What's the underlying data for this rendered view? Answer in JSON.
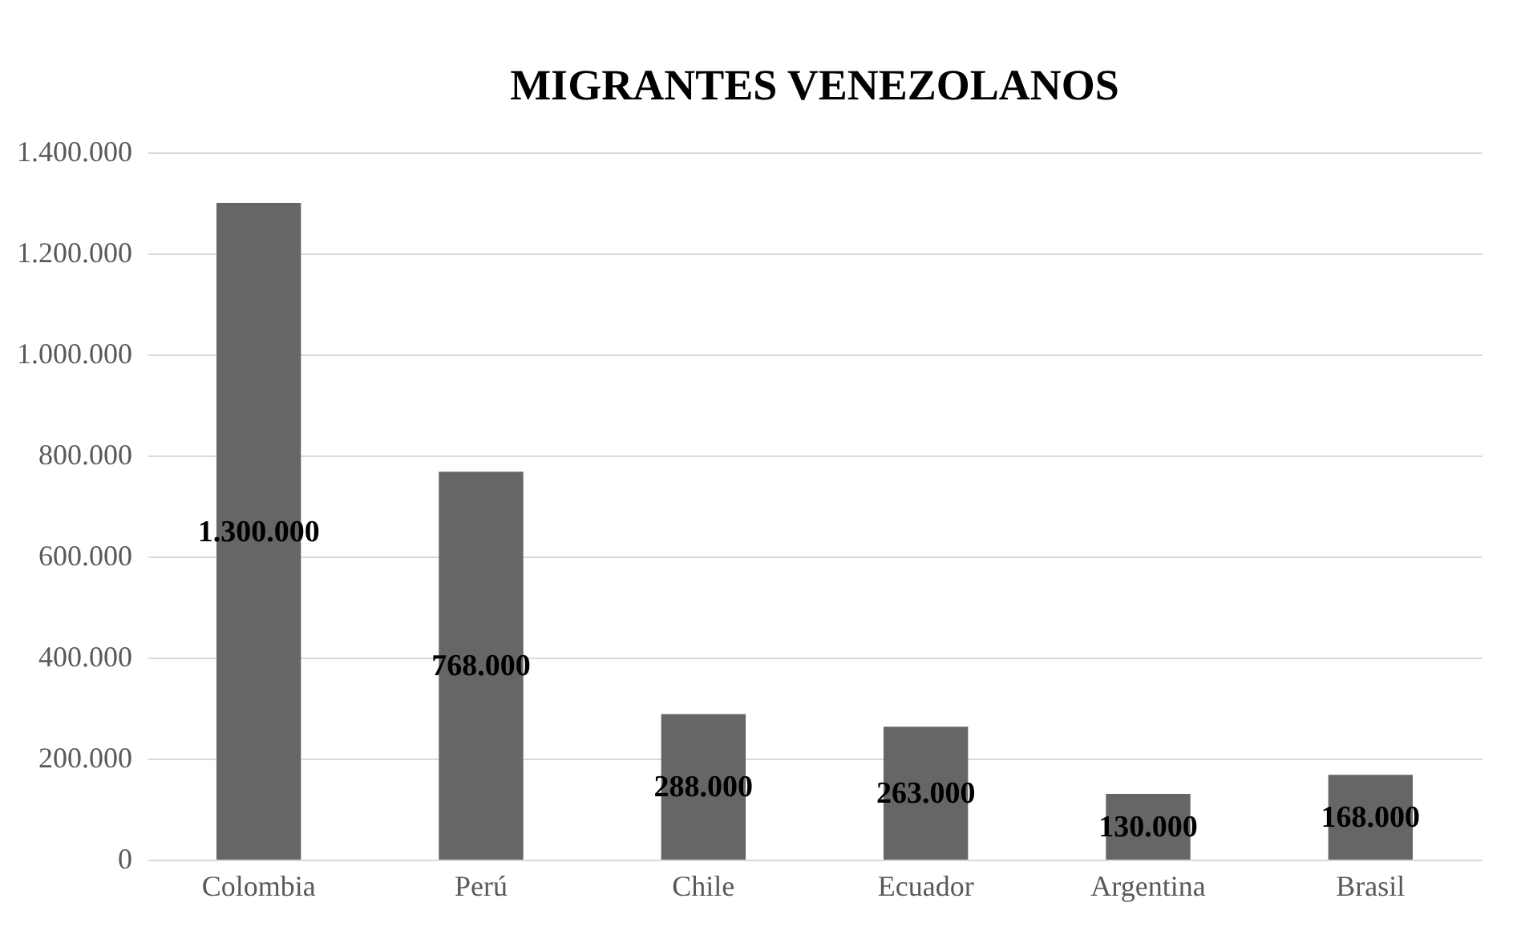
{
  "chart_data": {
    "type": "bar",
    "title": "MIGRANTES VENEZOLANOS",
    "categories": [
      "Colombia",
      "Perú",
      "Chile",
      "Ecuador",
      "Argentina",
      "Brasil"
    ],
    "values": [
      1300000,
      768000,
      288000,
      263000,
      130000,
      168000
    ],
    "value_labels": [
      "1.300.000",
      "768.000",
      "288.000",
      "263.000",
      "130.000",
      "168.000"
    ],
    "color": "#666666",
    "ylim": [
      0,
      1400000
    ],
    "yticks": [
      0,
      {
        "value": 200000,
        "label": "200.000"
      },
      {
        "value": 400000,
        "label": "400.000"
      },
      {
        "value": 600000,
        "label": "600.000"
      },
      {
        "value": 800000,
        "label": "800.000"
      },
      {
        "value": 1000000,
        "label": "1.000.000"
      },
      {
        "value": 1200000,
        "label": "1.200.000"
      },
      {
        "value": 1400000,
        "label": "1.400.000"
      }
    ],
    "grid": "y"
  }
}
